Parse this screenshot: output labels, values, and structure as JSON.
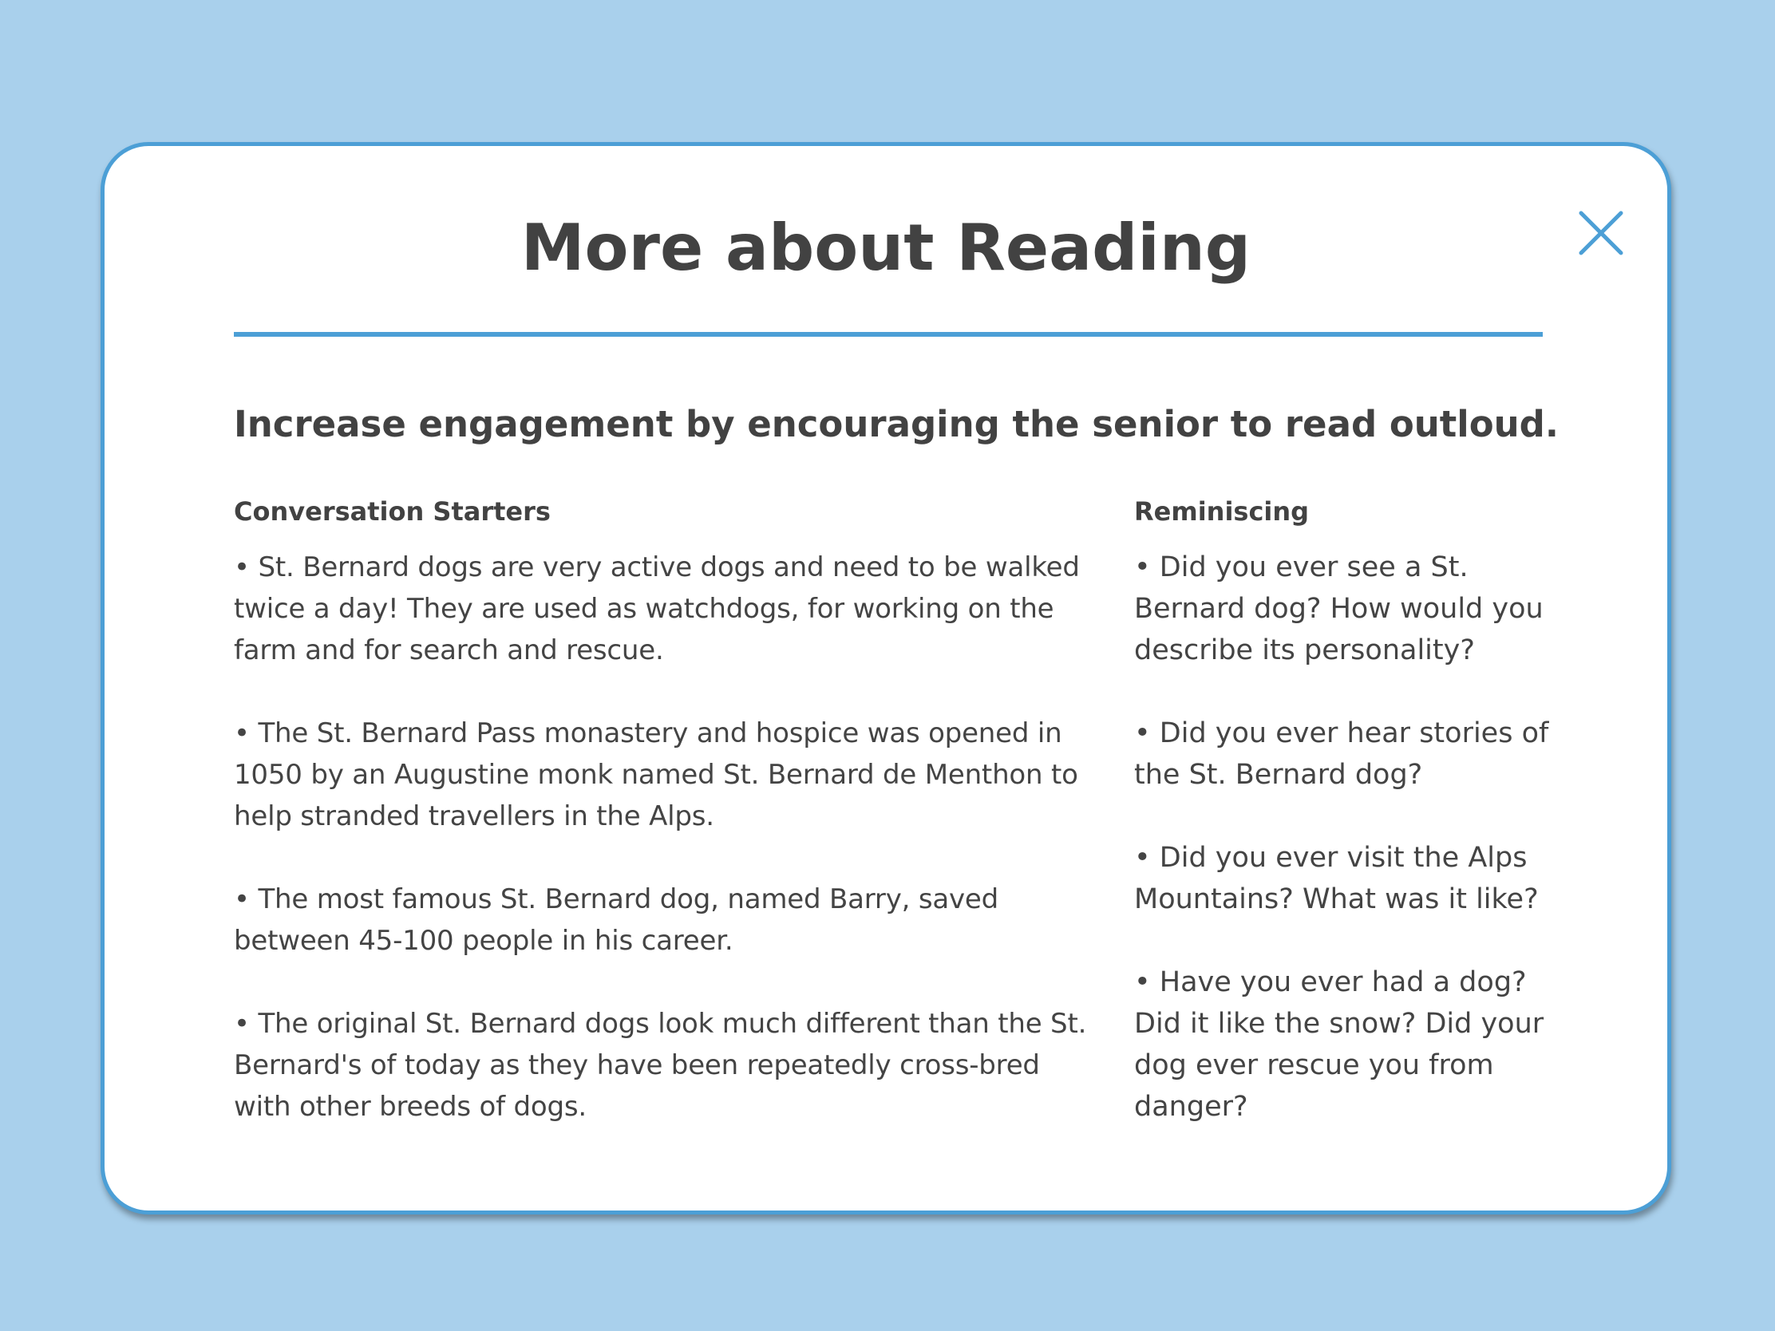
{
  "modal": {
    "title": "More about Reading",
    "subtitle": "Increase engagement by encouraging the senior to read outloud.",
    "close_icon": "close-icon",
    "accent_color": "#4c9fd6",
    "background_color": "#a9d0ec"
  },
  "conversation_starters": {
    "heading": "Conversation Starters",
    "items": [
      "• St. Bernard dogs are very active dogs and need to be walked twice a day! They are used as watchdogs, for working on the farm and for search and rescue.",
      "• The St. Bernard Pass monastery and hospice was opened in 1050 by an Augustine monk named St. Bernard de Menthon to help stranded travellers in the Alps.",
      "• The most famous St. Bernard dog, named Barry, saved between 45-100 people in his career.",
      "• The original St. Bernard dogs look much different than the St. Bernard's of today as they have been repeatedly cross-bred with other breeds of dogs."
    ]
  },
  "reminiscing": {
    "heading": "Reminiscing",
    "items": [
      "• Did you ever see a St. Bernard dog? How would you describe its personality?",
      "• Did you ever hear stories of the St. Bernard dog?",
      "• Did you ever visit the Alps Mountains? What was it like?",
      "• Have you ever had a dog? Did it like the snow? Did your dog ever rescue you from danger?"
    ]
  }
}
